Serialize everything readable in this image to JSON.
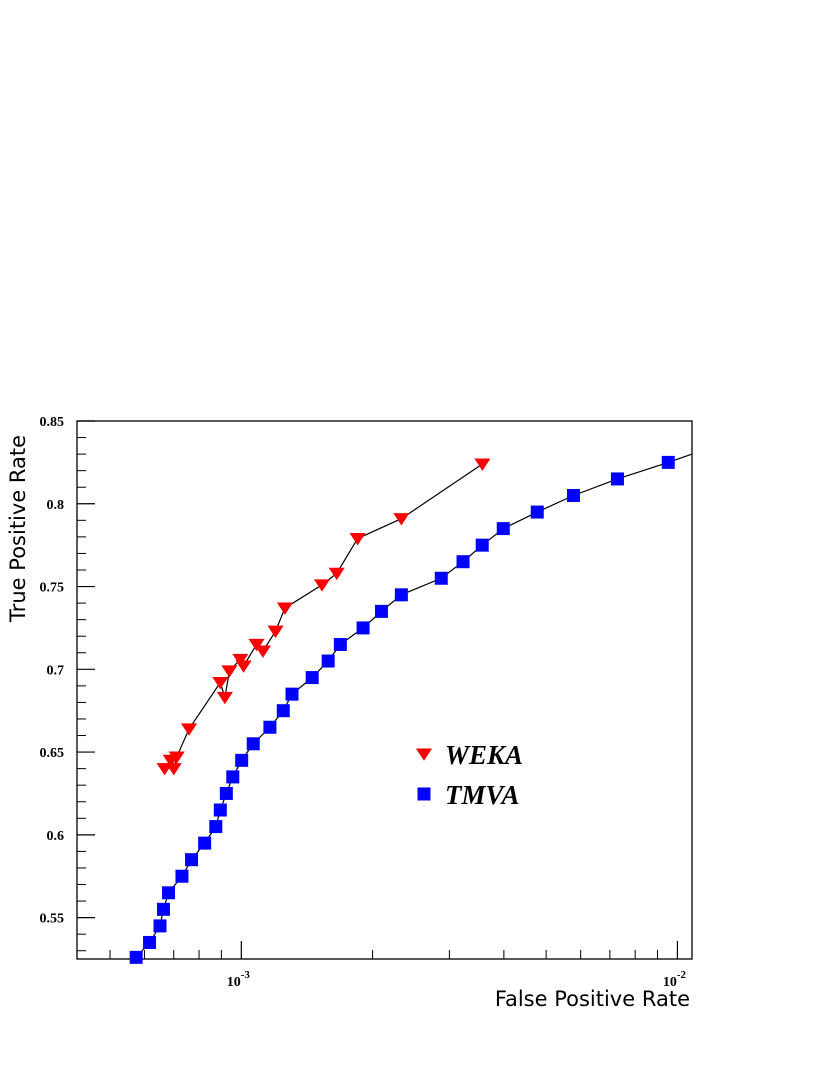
{
  "chart_data": {
    "type": "scatter",
    "title": "",
    "xlabel": "False Positive Rate",
    "ylabel": "True Positive Rate",
    "x_scale": "log",
    "xlim": [
      0.00042,
      0.0108
    ],
    "ylim": [
      0.525,
      0.85
    ],
    "grid": false,
    "legend_position": "center-right",
    "x_ticks": [
      {
        "value": 0.001,
        "base": "10",
        "exp": "-3"
      },
      {
        "value": 0.01,
        "base": "10",
        "exp": "-2"
      }
    ],
    "y_ticks": [
      {
        "value": 0.55,
        "label": "0.55"
      },
      {
        "value": 0.6,
        "label": "0.6"
      },
      {
        "value": 0.65,
        "label": "0.65"
      },
      {
        "value": 0.7,
        "label": "0.7"
      },
      {
        "value": 0.75,
        "label": "0.75"
      },
      {
        "value": 0.8,
        "label": "0.8"
      },
      {
        "value": 0.85,
        "label": "0.85"
      }
    ],
    "series": [
      {
        "name": "WEKA",
        "marker": "triangle-down",
        "color": "#ff0000",
        "line_color": "#000000",
        "x": [
          0.000667,
          0.000689,
          0.0007,
          0.000711,
          0.000759,
          0.000895,
          0.000917,
          0.000939,
          0.000995,
          0.001012,
          0.001084,
          0.001121,
          0.001198,
          0.001259,
          0.001531,
          0.001655,
          0.001848,
          0.002328,
          0.003571
        ],
        "y": [
          0.64,
          0.645,
          0.64,
          0.647,
          0.664,
          0.692,
          0.683,
          0.699,
          0.706,
          0.702,
          0.715,
          0.711,
          0.723,
          0.737,
          0.751,
          0.758,
          0.779,
          0.791,
          0.824
        ]
      },
      {
        "name": "TMVA",
        "marker": "square",
        "color": "#0000ff",
        "line_color": "#000000",
        "x": [
          0.000574,
          0.000616,
          0.000651,
          0.000663,
          0.000681,
          0.000731,
          0.000769,
          0.000824,
          0.000874,
          0.000895,
          0.000924,
          0.000956,
          0.001002,
          0.001065,
          0.001163,
          0.001248,
          0.001307,
          0.001454,
          0.001582,
          0.001687,
          0.001902,
          0.002096,
          0.002328,
          0.002874,
          0.003224,
          0.003568,
          0.003987,
          0.004771,
          0.005775,
          0.007286,
          0.009527,
          0.0108
        ],
        "y": [
          0.526,
          0.535,
          0.545,
          0.555,
          0.565,
          0.575,
          0.585,
          0.595,
          0.605,
          0.615,
          0.625,
          0.635,
          0.645,
          0.655,
          0.665,
          0.675,
          0.685,
          0.695,
          0.705,
          0.715,
          0.725,
          0.735,
          0.745,
          0.755,
          0.765,
          0.775,
          0.785,
          0.795,
          0.805,
          0.815,
          0.825,
          0.83
        ]
      }
    ]
  }
}
